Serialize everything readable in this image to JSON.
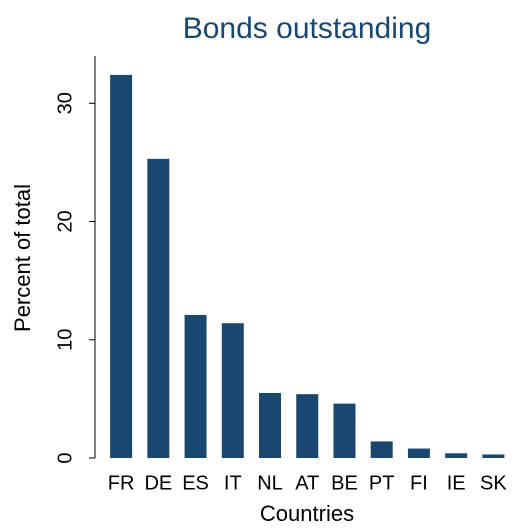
{
  "chart_data": {
    "type": "bar",
    "title": "Bonds outstanding",
    "x_label": "Countries",
    "y_label": "Percent of total",
    "categories": [
      "FR",
      "DE",
      "ES",
      "IT",
      "NL",
      "AT",
      "BE",
      "PT",
      "FI",
      "IE",
      "SK"
    ],
    "values": [
      32.4,
      25.3,
      12.1,
      11.4,
      5.5,
      5.4,
      4.6,
      1.4,
      0.8,
      0.4,
      0.3
    ],
    "color": "#1a476f",
    "ylim": [
      0,
      34
    ],
    "yticks": [
      0,
      10,
      20,
      30
    ],
    "grid": false
  }
}
